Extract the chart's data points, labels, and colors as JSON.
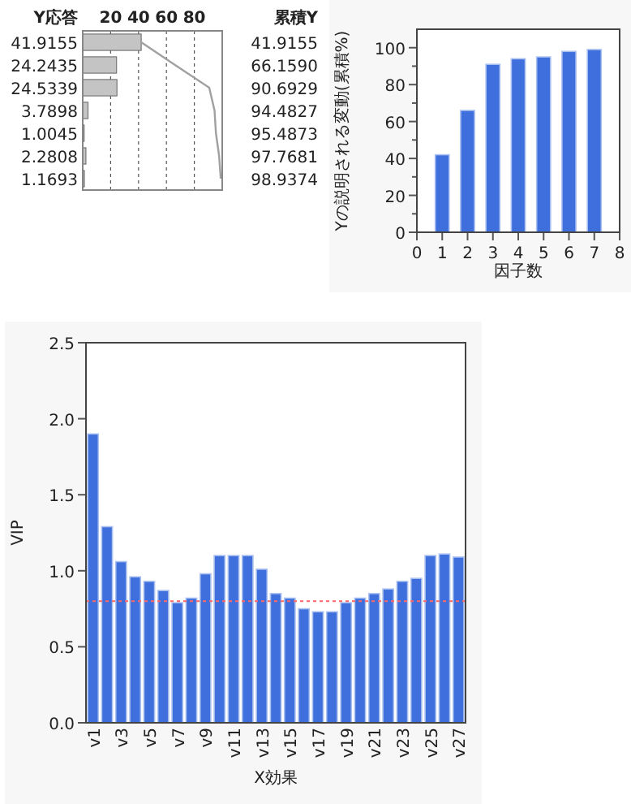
{
  "chart_data": [
    {
      "type": "bar",
      "orientation": "horizontal",
      "categories": [
        null,
        null,
        null,
        null,
        null,
        null,
        null
      ],
      "xlim": [
        0,
        100
      ],
      "xticks": [
        20,
        40,
        60,
        80
      ],
      "grid": "x",
      "series": [
        {
          "name": "Y応答",
          "type": "bar",
          "color": "#c4c4c4",
          "values": [
            41.9155,
            24.2435,
            24.5339,
            3.7898,
            1.0045,
            2.2808,
            1.1693
          ],
          "value_labels": [
            "41.9155",
            "24.2435",
            "24.5339",
            "3.7898",
            "1.0045",
            "2.2808",
            "1.1693"
          ]
        },
        {
          "type": "line",
          "color": "#a0a0a0",
          "values": [
            41.9155,
            66.159,
            90.6929,
            94.4827,
            95.4873,
            97.7681,
            98.9374
          ],
          "value_labels": [
            "41.9155",
            "66.1590",
            "90.6929",
            "94.4827",
            "95.4873",
            "97.7681",
            "98.9374"
          ]
        }
      ],
      "annotations": [
        "累積Y"
      ]
    },
    {
      "type": "bar",
      "x": [
        1,
        2,
        3,
        4,
        5,
        6,
        7
      ],
      "values": [
        42,
        66,
        91,
        94,
        95,
        98,
        99
      ],
      "color": "#3f6fdc",
      "xlim": [
        0,
        8
      ],
      "xticks": [
        0,
        1,
        2,
        3,
        4,
        5,
        6,
        7,
        8
      ],
      "ylim": [
        0,
        110
      ],
      "yticks": [
        0,
        {
          "value": 10,
          "label": null
        },
        20,
        {
          "value": 30,
          "label": null
        },
        40,
        {
          "value": 50,
          "label": null
        },
        60,
        {
          "value": 70,
          "label": null
        },
        80,
        {
          "value": 90,
          "label": null
        },
        100
      ],
      "xlabel": "因子数",
      "ylabel": "Yの説明される変動(累積%)"
    },
    {
      "type": "bar",
      "categories": [
        "v1",
        null,
        "v3",
        null,
        "v5",
        null,
        "v7",
        null,
        "v9",
        null,
        "v11",
        null,
        "v13",
        null,
        "v15",
        null,
        "v17",
        null,
        "v19",
        null,
        "v21",
        null,
        "v23",
        null,
        "v25",
        null,
        "v27"
      ],
      "values": [
        1.9,
        1.29,
        1.06,
        0.96,
        0.93,
        0.87,
        0.79,
        0.82,
        0.98,
        1.1,
        1.1,
        1.1,
        1.01,
        0.85,
        0.82,
        0.75,
        0.73,
        0.73,
        0.79,
        0.82,
        0.85,
        0.88,
        0.93,
        0.95,
        1.1,
        1.11,
        1.09
      ],
      "color": "#3f6fdc",
      "ylim": [
        0,
        2.5
      ],
      "yticks": [
        {
          "value": 0,
          "label": "0.0"
        },
        {
          "value": 0.5,
          "label": "0.5"
        },
        {
          "value": 1,
          "label": "1.0"
        },
        {
          "value": 1.5,
          "label": "1.5"
        },
        {
          "value": 2,
          "label": "2.0"
        },
        {
          "value": 2.5,
          "label": "2.5"
        }
      ],
      "ref_lines": [
        {
          "axis": "y",
          "value": 0.8,
          "color": "#ff6666",
          "line_style": "dotted"
        }
      ],
      "xlabel": "X効果",
      "ylabel": "VIP"
    }
  ]
}
